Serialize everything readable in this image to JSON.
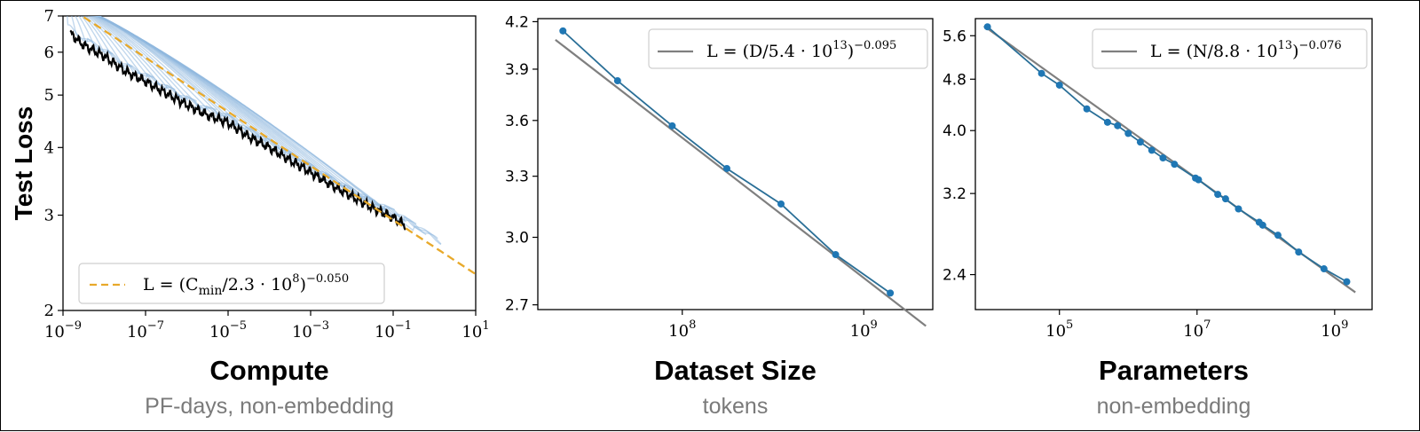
{
  "colors": {
    "curve": "#8fb8de",
    "frontier": "#000000",
    "fit_dashed": "#e8a92a",
    "points": "#1f77b4",
    "point_line": "#2a6f97",
    "fit_solid": "#7f7f7f"
  },
  "chart_data": [
    {
      "type": "line",
      "title": "",
      "xlabel": "Compute",
      "xsublabel": "PF-days, non-embedding",
      "ylabel": "Test Loss",
      "xscale": "log",
      "yscale": "log",
      "xlim": [
        1e-09,
        10
      ],
      "ylim": [
        2,
        7
      ],
      "x_ticks": [
        {
          "value": 1e-09,
          "base": "10",
          "exp": "−9"
        },
        {
          "value": 1e-07,
          "base": "10",
          "exp": "−7"
        },
        {
          "value": 1e-05,
          "base": "10",
          "exp": "−5"
        },
        {
          "value": 0.001,
          "base": "10",
          "exp": "−3"
        },
        {
          "value": 0.1,
          "base": "10",
          "exp": "−1"
        },
        {
          "value": 10,
          "base": "10",
          "exp": "1"
        }
      ],
      "y_ticks": [
        {
          "value": 2,
          "label": "2"
        },
        {
          "value": 3,
          "label": "3"
        },
        {
          "value": 4,
          "label": "4"
        },
        {
          "value": 5,
          "label": "5"
        },
        {
          "value": 6,
          "label": "6"
        },
        {
          "value": 7,
          "label": "7"
        }
      ],
      "grid": false,
      "legend_position": "lower-left",
      "legend": {
        "lhs": "L = (C",
        "sub": "min",
        "mid": "/2.3 · 10",
        "sup1": "8",
        "close": ")",
        "sup2": "−0.050"
      },
      "fit": {
        "name": "L = (Cmin/2.3·10^8)^−0.050",
        "scale": 230000000.0,
        "exponent": -0.05,
        "style": "dashed",
        "color": "#e8a92a"
      },
      "frontier": {
        "x": [
          1.5e-09,
          3e-09,
          1e-08,
          3e-08,
          1e-07,
          3e-07,
          1e-06,
          3e-06,
          1e-05,
          3e-05,
          0.0001,
          0.0003,
          0.001,
          0.003,
          0.01,
          0.03,
          0.1,
          0.2
        ],
        "y": [
          6.5,
          6.2,
          5.9,
          5.55,
          5.3,
          5.05,
          4.8,
          4.6,
          4.45,
          4.2,
          4.0,
          3.8,
          3.6,
          3.42,
          3.25,
          3.1,
          2.97,
          2.87
        ]
      },
      "learning_curves": {
        "count": 36,
        "start_x": 1.2e-09,
        "end_x": 1.5,
        "start_y": 7.2,
        "note": "many faint blue training curves converging onto the black frontier"
      }
    },
    {
      "type": "line",
      "title": "",
      "xlabel": "Dataset Size",
      "xsublabel": "tokens",
      "ylabel": "",
      "xscale": "log",
      "yscale": "log",
      "xlim": [
        16000000.0,
        2400000000.0
      ],
      "ylim": [
        2.68,
        4.22
      ],
      "x_ticks": [
        {
          "value": 100000000.0,
          "base": "10",
          "exp": "8"
        },
        {
          "value": 1000000000.0,
          "base": "10",
          "exp": "9"
        }
      ],
      "y_ticks": [
        {
          "value": 2.7,
          "label": "2.7"
        },
        {
          "value": 3.0,
          "label": "3.0"
        },
        {
          "value": 3.3,
          "label": "3.3"
        },
        {
          "value": 3.6,
          "label": "3.6"
        },
        {
          "value": 3.9,
          "label": "3.9"
        },
        {
          "value": 4.2,
          "label": "4.2"
        }
      ],
      "grid": false,
      "legend_position": "top-right",
      "legend": {
        "lhs": "L = (D/5.4 · 10",
        "sup1": "13",
        "close": ")",
        "sup2": "−0.095"
      },
      "fit": {
        "name": "L = (D/5.4·10^13)^−0.095",
        "scale": 54000000000000.0,
        "exponent": -0.095,
        "style": "solid",
        "color": "#7f7f7f",
        "x_range": [
          20000000.0,
          2200000000.0
        ]
      },
      "points": {
        "x": [
          22000000.0,
          44000000.0,
          88000000.0,
          176000000.0,
          350000000.0,
          700000000.0,
          1400000000.0
        ],
        "y": [
          4.14,
          3.83,
          3.57,
          3.34,
          3.16,
          2.92,
          2.75
        ]
      }
    },
    {
      "type": "line",
      "title": "",
      "xlabel": "Parameters",
      "xsublabel": "non-embedding",
      "ylabel": "",
      "xscale": "log",
      "yscale": "log",
      "xlim": [
        6000.0,
        3500000000.0
      ],
      "ylim": [
        2.12,
        5.95
      ],
      "x_ticks": [
        {
          "value": 100000.0,
          "base": "10",
          "exp": "5"
        },
        {
          "value": 10000000.0,
          "base": "10",
          "exp": "7"
        },
        {
          "value": 1000000000.0,
          "base": "10",
          "exp": "9"
        }
      ],
      "y_ticks": [
        {
          "value": 2.4,
          "label": "2.4"
        },
        {
          "value": 3.2,
          "label": "3.2"
        },
        {
          "value": 4.0,
          "label": "4.0"
        },
        {
          "value": 4.8,
          "label": "4.8"
        },
        {
          "value": 5.6,
          "label": "5.6"
        }
      ],
      "grid": false,
      "legend_position": "top-right",
      "legend": {
        "lhs": "L = (N/8.8 · 10",
        "sup1": "13",
        "close": ")",
        "sup2": "−0.076"
      },
      "fit": {
        "name": "L = (N/8.8·10^13)^−0.076",
        "scale": 88000000000000.0,
        "exponent": -0.076,
        "style": "solid",
        "color": "#7f7f7f",
        "x_range": [
          8000.0,
          2000000000.0
        ]
      },
      "points": {
        "x": [
          9000.0,
          55000.0,
          100000.0,
          250000.0,
          500000.0,
          700000.0,
          1000000.0,
          1500000.0,
          2200000.0,
          3200000.0,
          4700000.0,
          9500000.0,
          10500000.0,
          20000000.0,
          26000000.0,
          40000000.0,
          80000000.0,
          90000000.0,
          150000000.0,
          300000000.0,
          700000000.0,
          1500000000.0
        ],
        "y": [
          5.78,
          4.9,
          4.7,
          4.32,
          4.12,
          4.07,
          3.96,
          3.84,
          3.73,
          3.63,
          3.55,
          3.38,
          3.36,
          3.19,
          3.14,
          3.03,
          2.89,
          2.86,
          2.76,
          2.6,
          2.45,
          2.34
        ]
      }
    }
  ]
}
